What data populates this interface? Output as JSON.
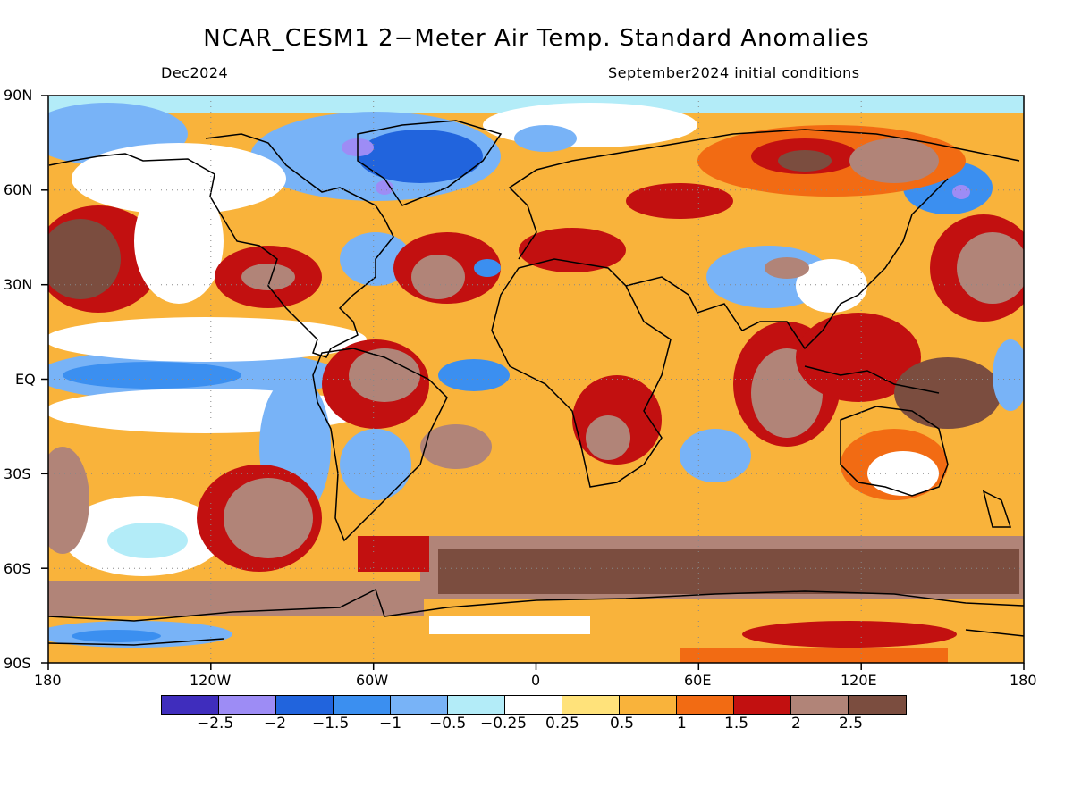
{
  "title": "NCAR_CESM1 2−Meter Air Temp. Standard Anomalies",
  "subtitle_left": "Dec2024",
  "subtitle_right": "September2024 initial conditions",
  "lat_labels": [
    "90N",
    "60N",
    "30N",
    "EQ",
    "30S",
    "60S",
    "90S"
  ],
  "lon_labels": [
    "180",
    "120W",
    "60W",
    "0",
    "60E",
    "120E",
    "180"
  ],
  "colorbar": {
    "colors": [
      "#3f2dbd",
      "#9d8cf5",
      "#2164dd",
      "#3b8ff0",
      "#78b3f7",
      "#b3ecf8",
      "#ffffff",
      "#ffe27a",
      "#f9b33b",
      "#f26b13",
      "#c21010",
      "#b18478",
      "#7b4d3f"
    ],
    "labels": [
      "−2.5",
      "−2",
      "−1.5",
      "−1",
      "−0.5",
      "−0.25",
      "0.25",
      "0.5",
      "1",
      "1.5",
      "2",
      "2.5"
    ]
  },
  "map": {
    "ocean_base_color": "#f9b33b",
    "coastline_color": "#000000",
    "grid_color": "#888888"
  }
}
